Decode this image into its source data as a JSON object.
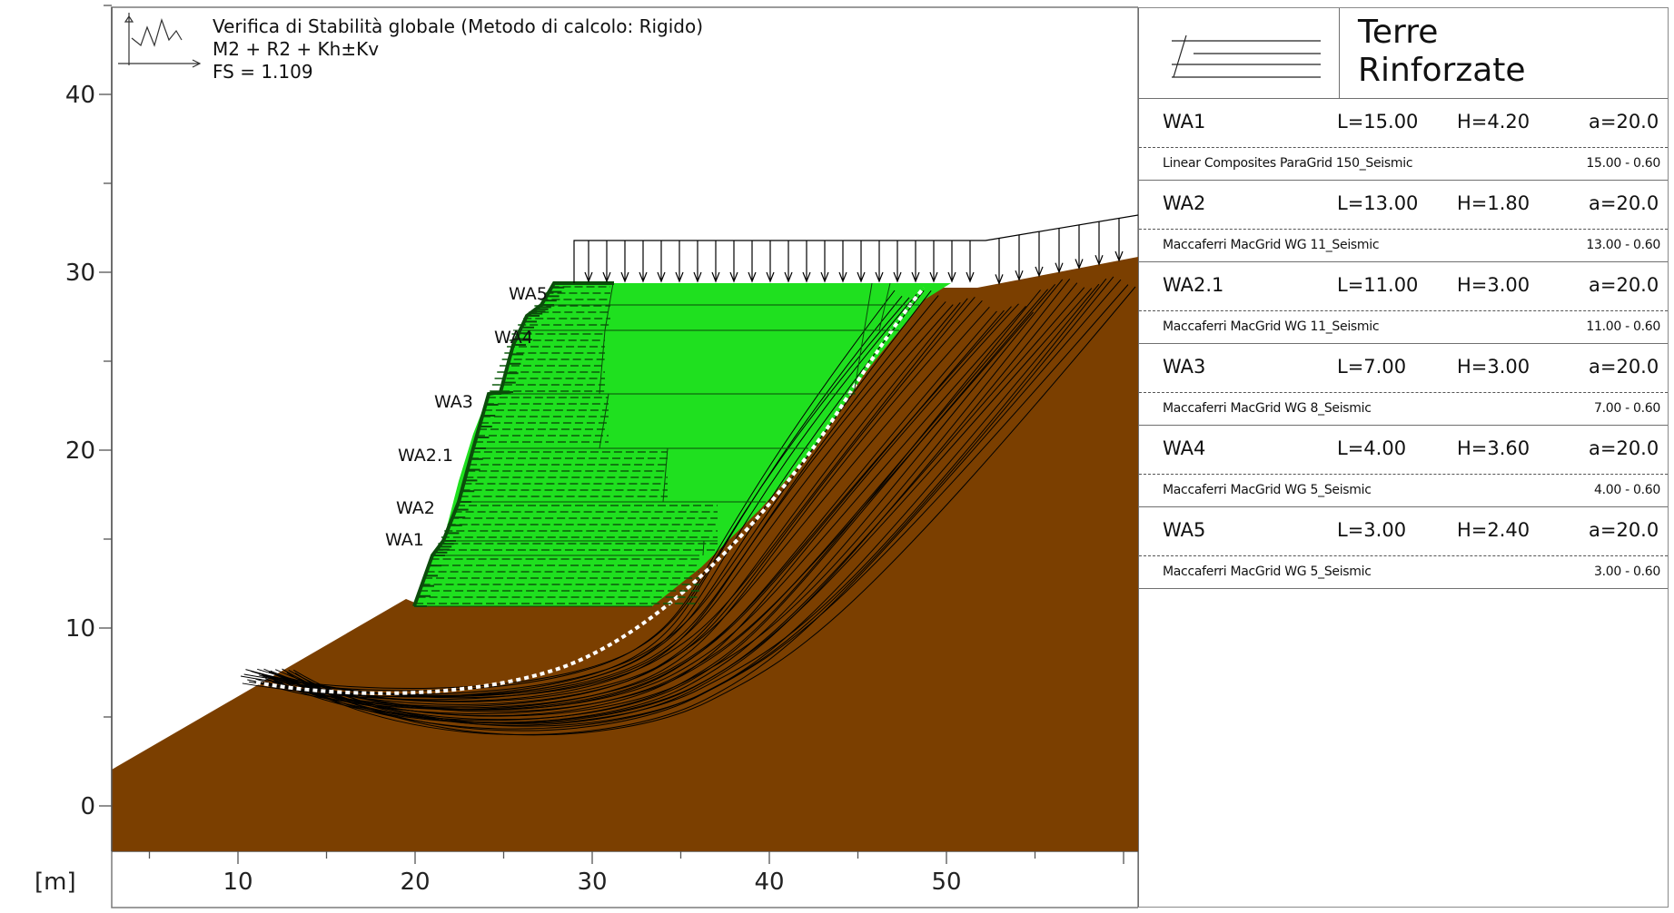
{
  "plot": {
    "header_line1": "Verifica di Stabilità globale (Metodo di calcolo: Rigido)",
    "header_line2": "M2 + R2 + Kh±Kv",
    "header_line3": "FS = 1.109",
    "unit_label": "[m]",
    "y_ticks": [
      "0",
      "10",
      "20",
      "30",
      "40"
    ],
    "x_ticks": [
      "10",
      "20",
      "30",
      "40",
      "50"
    ],
    "wall_labels": [
      "WA5",
      "WA4",
      "WA3",
      "WA2.1",
      "WA2",
      "WA1"
    ],
    "colors": {
      "soil": "#7b3f00",
      "fill": "#1fe01f",
      "reinforcement": "#0a5d0a",
      "critical_surface": "#ffffff"
    }
  },
  "panel": {
    "title_line1": "Terre",
    "title_line2": "Rinforzate",
    "rows": [
      {
        "name": "WA1",
        "L": "L=15.00",
        "H": "H=4.20",
        "a": "a=20.0",
        "product": "Linear Composites ParaGrid 150_Seismic",
        "dims": "15.00 - 0.60"
      },
      {
        "name": "WA2",
        "L": "L=13.00",
        "H": "H=1.80",
        "a": "a=20.0",
        "product": "Maccaferri MacGrid WG 11_Seismic",
        "dims": "13.00 - 0.60"
      },
      {
        "name": "WA2.1",
        "L": "L=11.00",
        "H": "H=3.00",
        "a": "a=20.0",
        "product": "Maccaferri MacGrid WG 11_Seismic",
        "dims": "11.00 - 0.60"
      },
      {
        "name": "WA3",
        "L": "L=7.00",
        "H": "H=3.00",
        "a": "a=20.0",
        "product": "Maccaferri MacGrid WG 8_Seismic",
        "dims": "7.00 - 0.60"
      },
      {
        "name": "WA4",
        "L": "L=4.00",
        "H": "H=3.60",
        "a": "a=20.0",
        "product": "Maccaferri MacGrid WG 5_Seismic",
        "dims": "4.00 - 0.60"
      },
      {
        "name": "WA5",
        "L": "L=3.00",
        "H": "H=2.40",
        "a": "a=20.0",
        "product": "Maccaferri MacGrid WG 5_Seismic",
        "dims": "3.00 - 0.60"
      }
    ]
  }
}
